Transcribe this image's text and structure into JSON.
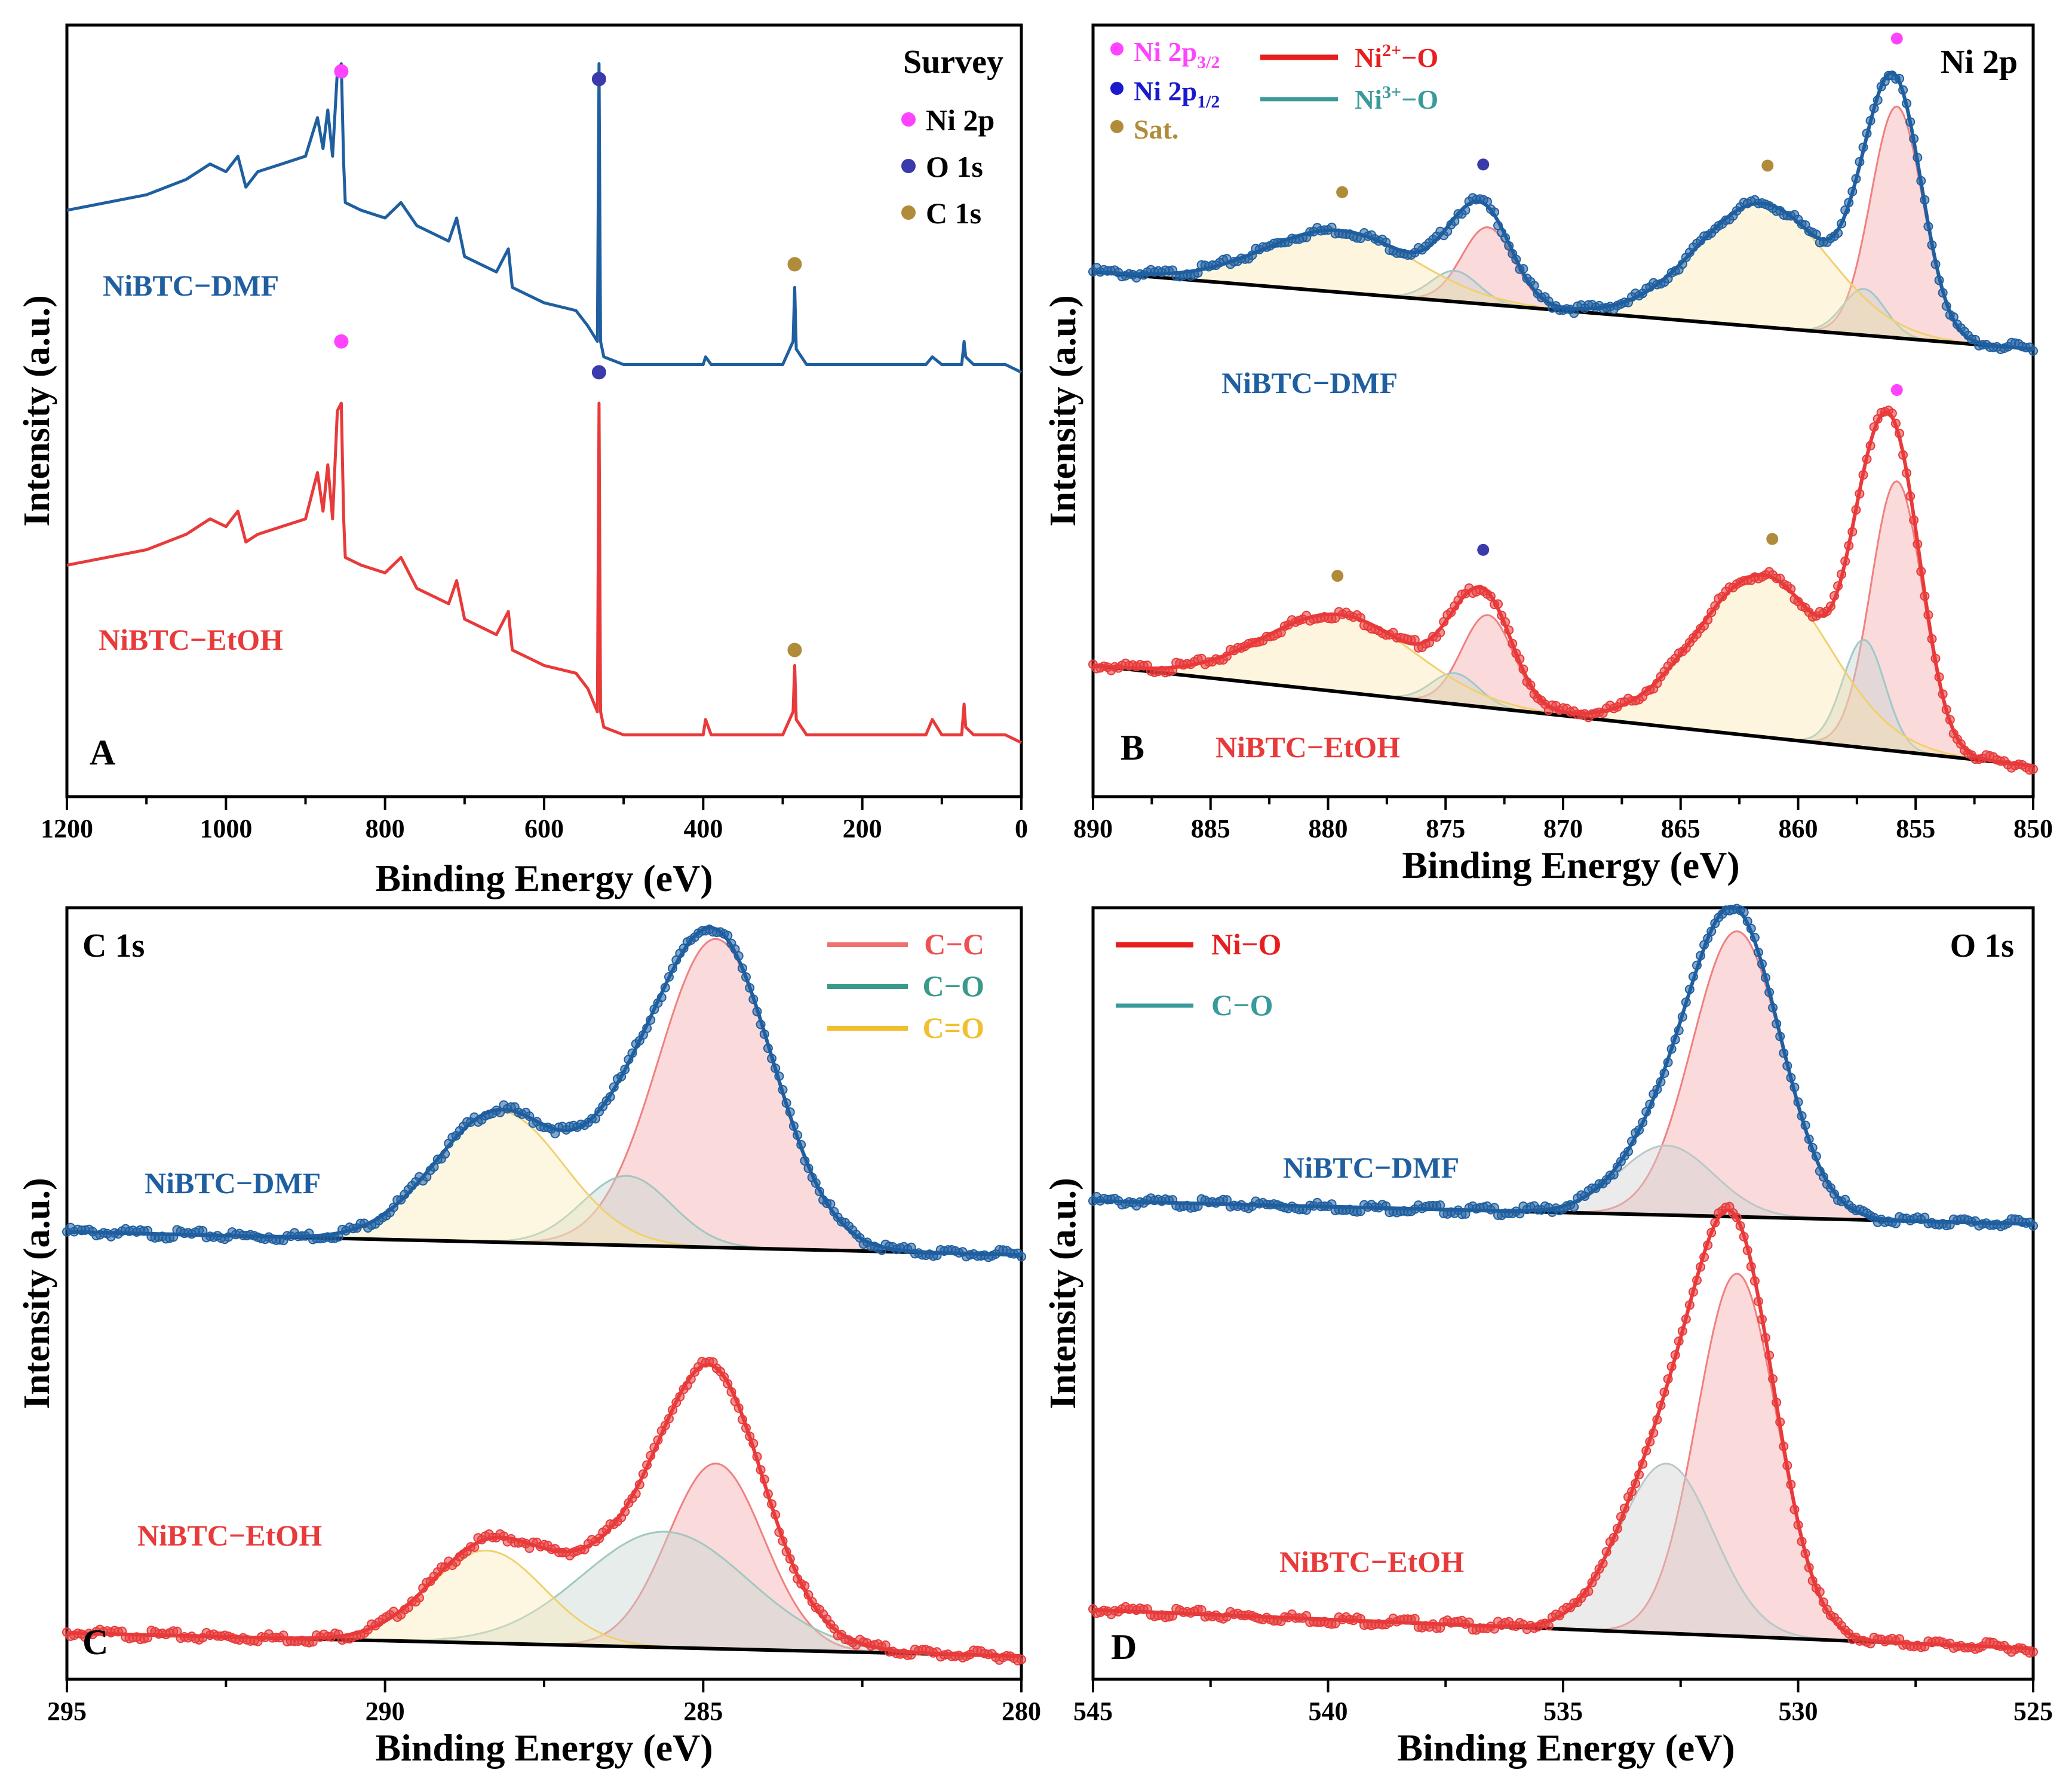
{
  "chart_data": [
    {
      "panel_letter": "A",
      "type": "line",
      "title": "Survey",
      "xlabel": "Binding Energy (eV)",
      "ylabel": "Intensity (a.u.)",
      "xlim": [
        1200,
        0
      ],
      "ylim": [
        0,
        100
      ],
      "x_ticks": [
        1200,
        1000,
        800,
        600,
        400,
        200,
        0
      ],
      "legend": [
        {
          "label": "Ni 2p",
          "color": "#ff44ff"
        },
        {
          "label": "O 1s",
          "color": "#3a3aaa"
        },
        {
          "label": "C 1s",
          "color": "#b08c3a"
        }
      ],
      "markers": [
        {
          "x": 855,
          "y": 94,
          "color": "#ff44ff"
        },
        {
          "x": 531,
          "y": 93,
          "color": "#3a3aaa"
        },
        {
          "x": 285,
          "y": 69,
          "color": "#b08c3a"
        },
        {
          "x": 855,
          "y": 59,
          "color": "#ff44ff"
        },
        {
          "x": 531,
          "y": 55,
          "color": "#3a3aaa"
        },
        {
          "x": 285,
          "y": 19,
          "color": "#b08c3a"
        }
      ],
      "series": [
        {
          "name": "NiBTC−DMF",
          "color": "#1f5fa0",
          "offset": 56,
          "x": [
            1200,
            1100,
            1050,
            1020,
            1000,
            985,
            975,
            960,
            930,
            900,
            885,
            878,
            872,
            866,
            860,
            855,
            852,
            850,
            830,
            800,
            780,
            760,
            720,
            710,
            700,
            660,
            645,
            640,
            620,
            600,
            560,
            545,
            533,
            531,
            529,
            525,
            500,
            400,
            397,
            390,
            300,
            287,
            285,
            283,
            270,
            200,
            120,
            112,
            100,
            75,
            72,
            70,
            60,
            20,
            0
          ],
          "values": [
            20,
            22,
            24,
            26,
            25,
            27,
            23,
            25,
            26,
            27,
            32,
            28,
            33,
            27,
            38,
            39,
            26,
            21,
            20,
            19,
            21,
            18,
            16,
            19,
            14,
            12,
            15,
            10,
            9,
            8,
            7,
            5,
            3,
            39,
            3,
            1,
            0,
            0,
            1,
            0,
            0,
            3,
            10,
            2,
            0,
            0,
            0,
            1,
            0,
            0,
            3,
            1,
            0,
            0,
            -1
          ]
        },
        {
          "name": "NiBTC−EtOH",
          "color": "#e83a3a",
          "offset": 8,
          "x": [
            1200,
            1100,
            1050,
            1020,
            1000,
            985,
            975,
            960,
            930,
            900,
            885,
            878,
            872,
            866,
            860,
            855,
            852,
            850,
            830,
            800,
            780,
            760,
            720,
            710,
            700,
            660,
            645,
            640,
            620,
            600,
            560,
            545,
            533,
            531,
            529,
            525,
            500,
            400,
            397,
            390,
            300,
            287,
            285,
            283,
            270,
            200,
            120,
            112,
            100,
            75,
            72,
            70,
            60,
            20,
            0
          ],
          "values": [
            22,
            24,
            26,
            28,
            27,
            29,
            25,
            26,
            27,
            28,
            34,
            29,
            35,
            28,
            42,
            43,
            28,
            23,
            22,
            21,
            23,
            19,
            17,
            20,
            15,
            13,
            16,
            11,
            10,
            9,
            8,
            6,
            3,
            43,
            3,
            1,
            0,
            0,
            2,
            0,
            0,
            3,
            9,
            2,
            0,
            0,
            0,
            2,
            0,
            0,
            4,
            1,
            0,
            0,
            -1
          ]
        }
      ]
    },
    {
      "panel_letter": "B",
      "type": "line",
      "title": "Ni 2p",
      "xlabel": "Binding Energy (eV)",
      "ylabel": "Intensity (a.u.)",
      "xlim": [
        890,
        850
      ],
      "ylim": [
        0,
        100
      ],
      "x_ticks": [
        890,
        885,
        880,
        875,
        870,
        865,
        860,
        855,
        850
      ],
      "legend_markers": [
        {
          "label": "Ni 2p",
          "sub": "3/2",
          "color": "#ff44ff"
        },
        {
          "label": "Ni 2p",
          "sub": "1/2",
          "color": "#1a1acc"
        },
        {
          "label": "Sat.",
          "sub": "",
          "color": "#b08c3a"
        }
      ],
      "legend_lines": [
        {
          "label": "Ni",
          "sup": "2+",
          "suffix": "−O",
          "color": "#e81e1e"
        },
        {
          "label": "Ni",
          "sup": "3+",
          "suffix": "−O",
          "color": "#3a9a9a"
        }
      ],
      "components": [
        {
          "name": "Ni2+−O (2p3/2)",
          "center": 855.8,
          "width": 1.1,
          "fill": "rgba(240,150,150,0.35)",
          "stroke": "#f08080"
        },
        {
          "name": "Ni3+−O (2p3/2)",
          "center": 857.2,
          "width": 0.9,
          "fill": "rgba(200,210,210,0.45)",
          "stroke": "#a0c8c8"
        },
        {
          "name": "Sat. (2p3/2)",
          "center": 861.5,
          "width": 2.8,
          "fill": "rgba(250,225,160,0.35)",
          "stroke": "#f0d070"
        },
        {
          "name": "Ni2+−O (2p1/2)",
          "center": 873.2,
          "width": 1.1,
          "fill": "rgba(240,150,150,0.35)",
          "stroke": "#f08080"
        },
        {
          "name": "Ni3+−O (2p1/2)",
          "center": 874.6,
          "width": 1.0,
          "fill": "rgba(200,210,210,0.45)",
          "stroke": "#a0c8c8"
        },
        {
          "name": "Sat. (2p1/2)",
          "center": 879.5,
          "width": 3.2,
          "fill": "rgba(250,225,160,0.35)",
          "stroke": "#f0d070"
        }
      ],
      "series": [
        {
          "name": "NiBTC−DMF",
          "color": "#1f5fa0",
          "baseline_left": 68,
          "baseline_right": 58,
          "amplitudes": [
            30,
            6,
            16,
            10,
            4,
            8
          ],
          "marker_peaks": [
            {
              "x": 855.8,
              "color": "#ff44ff"
            },
            {
              "x": 873.4,
              "color": "#3a3aaa"
            },
            {
              "x": 861.3,
              "color": "#b08c3a"
            },
            {
              "x": 879.4,
              "color": "#b08c3a"
            }
          ]
        },
        {
          "name": "NiBTC−EtOH",
          "color": "#e83a3a",
          "baseline_left": 17,
          "baseline_right": 4,
          "amplitudes": [
            35,
            14,
            21,
            12,
            4,
            10
          ],
          "marker_peaks": [
            {
              "x": 855.8,
              "color": "#ff44ff"
            },
            {
              "x": 873.4,
              "color": "#3a3aaa"
            },
            {
              "x": 861.1,
              "color": "#b08c3a"
            },
            {
              "x": 879.6,
              "color": "#b08c3a"
            }
          ]
        }
      ]
    },
    {
      "panel_letter": "C",
      "type": "line",
      "title": "C 1s",
      "xlabel": "Binding Energy (eV)",
      "ylabel": "Intensity (a.u.)",
      "xlim": [
        295,
        280
      ],
      "ylim": [
        0,
        100
      ],
      "x_ticks": [
        295,
        290,
        285,
        280
      ],
      "legend_lines": [
        {
          "label": "C−C",
          "color": "#f07070"
        },
        {
          "label": "C−O",
          "color": "#3a9a8a"
        },
        {
          "label": "C=O",
          "color": "#f0c030"
        }
      ],
      "components": [
        {
          "name": "C−C",
          "fill": "rgba(240,150,150,0.35)",
          "stroke": "#f08080"
        },
        {
          "name": "C−O",
          "fill": "rgba(200,215,210,0.45)",
          "stroke": "#a0c8c0"
        },
        {
          "name": "C=O",
          "fill": "rgba(250,235,180,0.40)",
          "stroke": "#f0d070"
        }
      ],
      "series": [
        {
          "name": "NiBTC−DMF",
          "color": "#1f5fa0",
          "baseline_left": 58,
          "baseline_right": 55,
          "peaks": [
            {
              "center": 284.8,
              "width": 0.9,
              "amp": 40
            },
            {
              "center": 286.2,
              "width": 0.7,
              "amp": 9
            },
            {
              "center": 288.2,
              "width": 1.0,
              "amp": 17
            }
          ]
        },
        {
          "name": "NiBTC−EtOH",
          "color": "#e83a3a",
          "baseline_left": 6,
          "baseline_right": 3,
          "peaks": [
            {
              "center": 284.8,
              "width": 0.75,
              "amp": 24
            },
            {
              "center": 285.6,
              "width": 1.3,
              "amp": 15
            },
            {
              "center": 288.4,
              "width": 0.9,
              "amp": 12
            }
          ]
        }
      ]
    },
    {
      "panel_letter": "D",
      "type": "line",
      "title": "O 1s",
      "xlabel": "Binding Energy (eV)",
      "ylabel": "Intensity (a.u.)",
      "xlim": [
        545,
        525
      ],
      "ylim": [
        0,
        100
      ],
      "x_ticks": [
        545,
        540,
        535,
        530,
        525
      ],
      "legend_lines": [
        {
          "label": "Ni−O",
          "color": "#e81e1e"
        },
        {
          "label": "C−O",
          "color": "#3a9a9a"
        }
      ],
      "components": [
        {
          "name": "Ni−O",
          "fill": "rgba(240,150,150,0.35)",
          "stroke": "#f08080"
        },
        {
          "name": "C−O",
          "fill": "rgba(210,210,210,0.45)",
          "stroke": "#b8c8c8"
        }
      ],
      "series": [
        {
          "name": "NiBTC−DMF",
          "color": "#1f5fa0",
          "baseline_left": 62,
          "baseline_right": 59,
          "peaks": [
            {
              "center": 531.3,
              "width": 0.95,
              "amp": 37
            },
            {
              "center": 532.8,
              "width": 1.0,
              "amp": 9
            }
          ]
        },
        {
          "name": "NiBTC−EtOH",
          "color": "#e83a3a",
          "baseline_left": 9,
          "baseline_right": 4,
          "peaks": [
            {
              "center": 531.3,
              "width": 0.85,
              "amp": 47
            },
            {
              "center": 532.8,
              "width": 1.0,
              "amp": 22
            }
          ]
        }
      ]
    }
  ]
}
